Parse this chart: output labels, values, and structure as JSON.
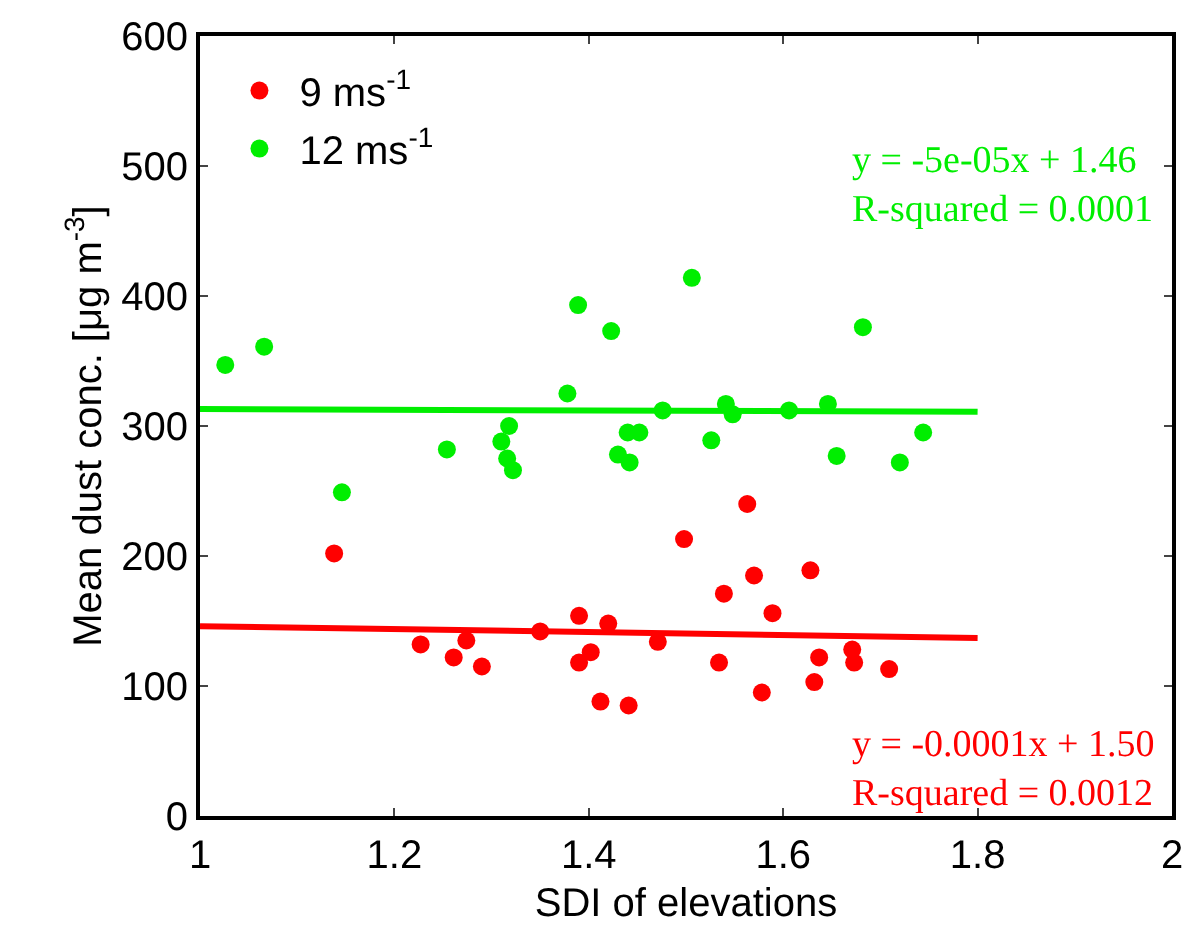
{
  "chart_data": {
    "type": "scatter",
    "xlabel": "SDI of elevations",
    "ylabel": "Mean dust conc. [μg m$^{-3}$]",
    "xlim": [
      1,
      2
    ],
    "xticks": [
      1,
      1.2,
      1.4,
      1.6,
      1.8,
      2
    ],
    "ylim": [
      0,
      600
    ],
    "yticks": [
      0,
      100,
      200,
      300,
      400,
      500,
      600
    ],
    "grid": false,
    "legend": "top left",
    "marker": "circle",
    "series": [
      {
        "name": "9 ms$^{-1}$",
        "color": "#ff0000",
        "x": [
          1.138,
          1.227,
          1.261,
          1.274,
          1.29,
          1.35,
          1.39,
          1.39,
          1.402,
          1.412,
          1.42,
          1.441,
          1.471,
          1.498,
          1.534,
          1.539,
          1.563,
          1.57,
          1.578,
          1.589,
          1.628,
          1.632,
          1.637,
          1.671,
          1.673,
          1.709
        ],
        "values": [
          202,
          132,
          122,
          135,
          115,
          142,
          154,
          118,
          126,
          88,
          148,
          85,
          134,
          213,
          118,
          171,
          240,
          185,
          95,
          156,
          189,
          103,
          122,
          128,
          118,
          113
        ]
      },
      {
        "name": "12 ms$^{-1}$",
        "color": "#00ee00",
        "x": [
          1.026,
          1.066,
          1.146,
          1.254,
          1.31,
          1.318,
          1.316,
          1.322,
          1.378,
          1.389,
          1.423,
          1.43,
          1.442,
          1.44,
          1.452,
          1.476,
          1.506,
          1.526,
          1.541,
          1.548,
          1.606,
          1.646,
          1.655,
          1.682,
          1.72,
          1.744
        ],
        "values": [
          347,
          361,
          249,
          282,
          288,
          300,
          275,
          266,
          325,
          393,
          373,
          278,
          272,
          295,
          295,
          312,
          414,
          289,
          317,
          309,
          312,
          317,
          277,
          376,
          272,
          295
        ]
      },
      {
        "type": "line",
        "marker": "none",
        "color": "#ff0000",
        "x": [
          1,
          1.8
        ],
        "values": [
          146,
          137
        ]
      },
      {
        "type": "line",
        "marker": "none",
        "color": "#00ee00",
        "x": [
          1,
          1.8
        ],
        "values": [
          313,
          311
        ]
      }
    ],
    "annotations": [
      "y = -5e-05x + 1.46\nR-squared = 0.0001",
      "y = -0.0001x + 1.50\nR-squared = 0.0012"
    ]
  }
}
